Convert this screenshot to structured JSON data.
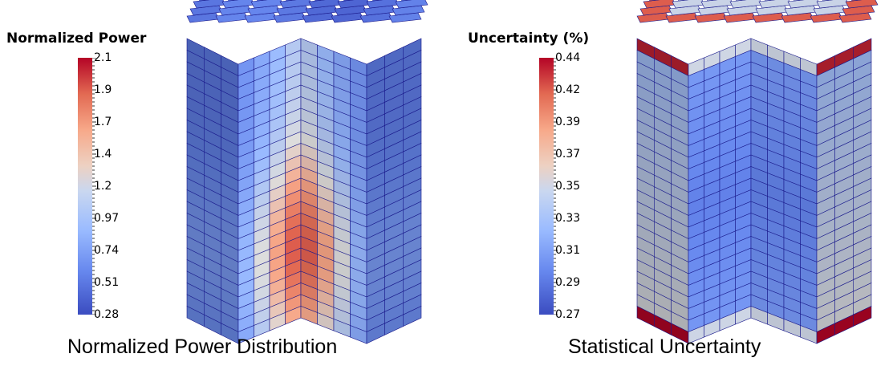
{
  "left": {
    "colorbar_title": "Normalized Power",
    "colorbar_labels": [
      "2.1",
      "1.9",
      "1.7",
      "1.4",
      "1.2",
      "0.97",
      "0.74",
      "0.51",
      "0.28"
    ],
    "caption": "Normalized Power Distribution",
    "colormap": "coolwarm"
  },
  "right": {
    "colorbar_title": "Uncertainty (%)",
    "colorbar_labels": [
      "0.44",
      "0.42",
      "0.39",
      "0.37",
      "0.35",
      "0.33",
      "0.31",
      "0.29",
      "0.27"
    ],
    "caption": "Statistical Uncertainty",
    "colormap": "coolwarm"
  },
  "colors": {
    "low": "#3b4cc0",
    "mid": "#dddddd",
    "high": "#b40426",
    "mesh_line": "#1a1a8c"
  }
}
